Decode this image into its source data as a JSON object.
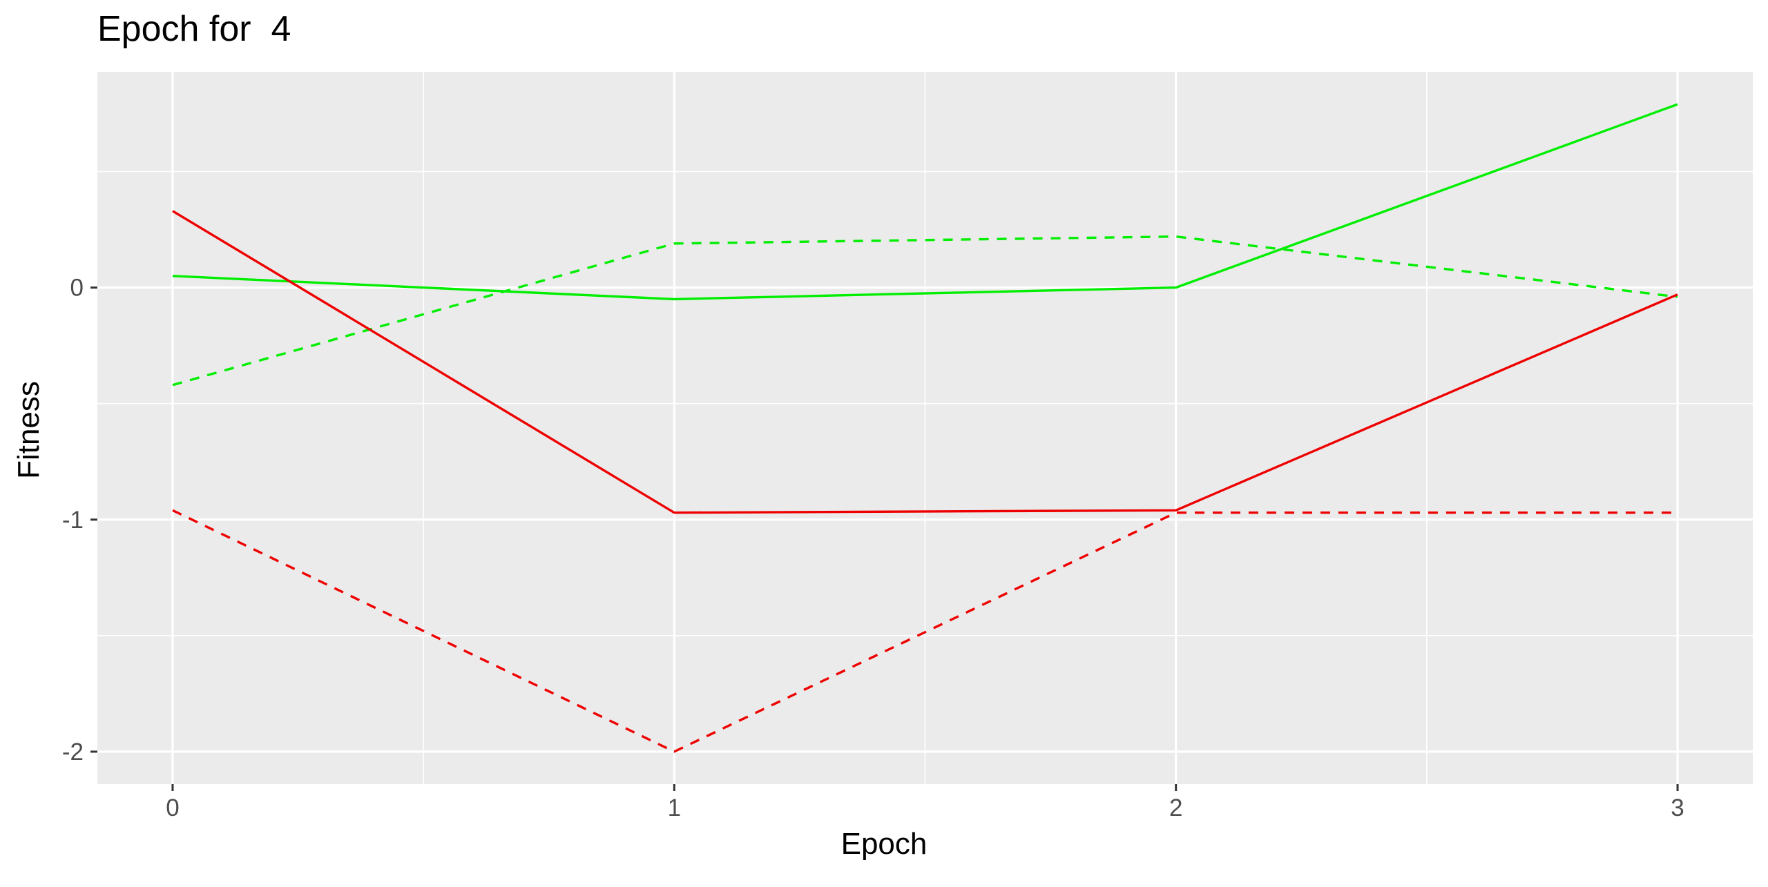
{
  "chart_data": {
    "type": "line",
    "title": "Epoch for  4",
    "xlabel": "Epoch",
    "ylabel": "Fitness",
    "x": [
      0,
      1,
      2,
      3
    ],
    "x_ticks": [
      0,
      1,
      2,
      3
    ],
    "x_tick_labels": [
      "0",
      "1",
      "2",
      "3"
    ],
    "y_ticks": [
      0,
      -1,
      -2
    ],
    "y_tick_labels": [
      "0",
      "-1",
      "-2"
    ],
    "xlim": [
      -0.15,
      3.15
    ],
    "ylim": [
      -2.14,
      0.93
    ],
    "grid": true,
    "legend": "none",
    "colors": {
      "panel_background": "#ebebeb",
      "grid": "#ffffff",
      "green": "#00ee00",
      "red": "#ee0000"
    },
    "series": [
      {
        "color": "#00ee00",
        "linestyle": "solid",
        "values": [
          0.05,
          -0.05,
          0.0,
          0.79
        ]
      },
      {
        "color": "#00ee00",
        "linestyle": "dashed",
        "values": [
          -0.42,
          0.19,
          0.22,
          -0.04
        ]
      },
      {
        "color": "#ee0000",
        "linestyle": "solid",
        "values": [
          0.33,
          -0.97,
          -0.96,
          -0.03
        ]
      },
      {
        "color": "#ee0000",
        "linestyle": "dashed",
        "values": [
          -0.96,
          -2.0,
          -0.97,
          -0.97
        ]
      }
    ]
  }
}
